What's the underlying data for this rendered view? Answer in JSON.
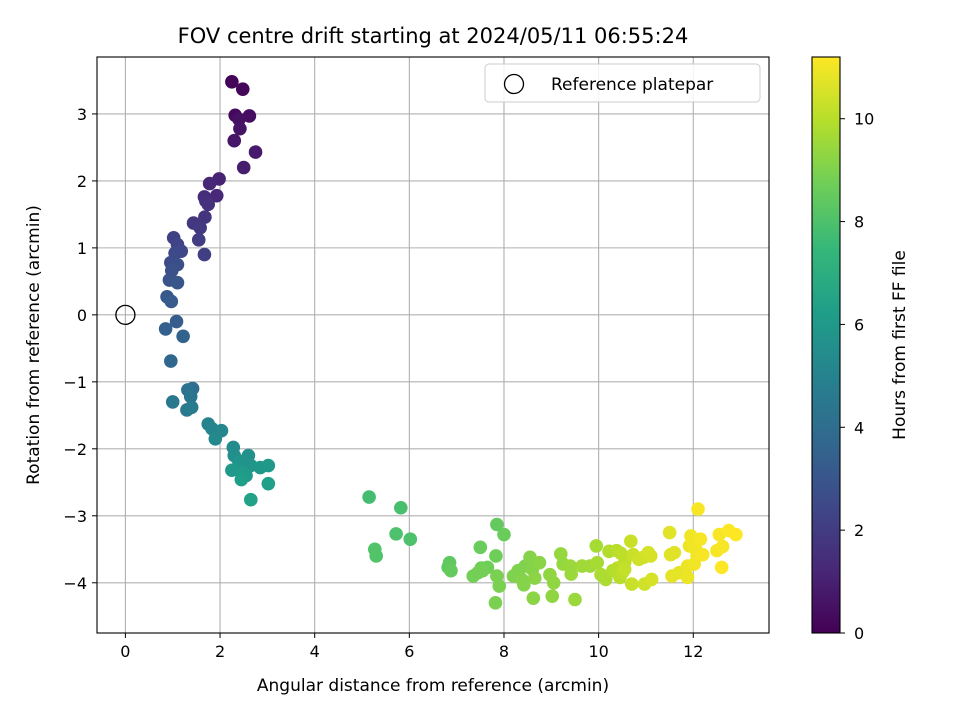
{
  "chart_data": {
    "type": "scatter",
    "title": "FOV centre drift starting at 2024/05/11 06:55:24",
    "xlabel": "Angular distance from reference (arcmin)",
    "ylabel": "Rotation from reference (arcmin)",
    "xlim": [
      -0.6,
      13.6
    ],
    "ylim": [
      -4.75,
      3.85
    ],
    "xticks": [
      0,
      2,
      4,
      6,
      8,
      10,
      12
    ],
    "yticks": [
      -4,
      -3,
      -2,
      -1,
      0,
      1,
      2,
      3
    ],
    "grid": true,
    "legend": {
      "label": "Reference platepar",
      "placement": "upper right"
    },
    "reference_point": {
      "x": 0,
      "y": 0
    },
    "colorbar": {
      "label": "Hours from first FF file",
      "colormap": "viridis",
      "range": [
        0,
        11.2
      ],
      "ticks": [
        0,
        2,
        4,
        6,
        8,
        10
      ]
    },
    "colormap_stops": [
      "#440154",
      "#482878",
      "#3e4989",
      "#31688e",
      "#26828e",
      "#1f9e89",
      "#35b779",
      "#6ece58",
      "#b5de2b",
      "#fde725"
    ],
    "points": [
      {
        "x": 2.25,
        "y": 3.48,
        "h": 0.1
      },
      {
        "x": 2.48,
        "y": 3.37,
        "h": 0.2
      },
      {
        "x": 2.32,
        "y": 2.98,
        "h": 0.3
      },
      {
        "x": 2.62,
        "y": 2.97,
        "h": 0.4
      },
      {
        "x": 2.4,
        "y": 2.92,
        "h": 0.5
      },
      {
        "x": 2.42,
        "y": 2.78,
        "h": 0.6
      },
      {
        "x": 2.3,
        "y": 2.6,
        "h": 0.7
      },
      {
        "x": 2.75,
        "y": 2.43,
        "h": 0.8
      },
      {
        "x": 2.5,
        "y": 2.2,
        "h": 0.9
      },
      {
        "x": 1.98,
        "y": 2.03,
        "h": 1.1
      },
      {
        "x": 1.78,
        "y": 1.96,
        "h": 1.2
      },
      {
        "x": 1.93,
        "y": 1.78,
        "h": 1.3
      },
      {
        "x": 1.67,
        "y": 1.76,
        "h": 1.4
      },
      {
        "x": 1.7,
        "y": 1.7,
        "h": 1.5
      },
      {
        "x": 1.75,
        "y": 1.65,
        "h": 1.6
      },
      {
        "x": 1.68,
        "y": 1.46,
        "h": 1.7
      },
      {
        "x": 1.44,
        "y": 1.37,
        "h": 1.8
      },
      {
        "x": 1.58,
        "y": 1.3,
        "h": 1.9
      },
      {
        "x": 1.55,
        "y": 1.12,
        "h": 2.0
      },
      {
        "x": 1.67,
        "y": 0.9,
        "h": 2.1
      },
      {
        "x": 1.02,
        "y": 1.15,
        "h": 2.2
      },
      {
        "x": 1.1,
        "y": 1.05,
        "h": 2.3
      },
      {
        "x": 1.18,
        "y": 0.95,
        "h": 2.4
      },
      {
        "x": 1.05,
        "y": 0.92,
        "h": 2.5
      },
      {
        "x": 0.96,
        "y": 0.78,
        "h": 2.6
      },
      {
        "x": 1.1,
        "y": 0.75,
        "h": 2.7
      },
      {
        "x": 0.98,
        "y": 0.66,
        "h": 2.8
      },
      {
        "x": 0.93,
        "y": 0.52,
        "h": 2.9
      },
      {
        "x": 1.1,
        "y": 0.48,
        "h": 3.0
      },
      {
        "x": 0.88,
        "y": 0.27,
        "h": 3.1
      },
      {
        "x": 0.97,
        "y": 0.2,
        "h": 3.2
      },
      {
        "x": 1.08,
        "y": -0.1,
        "h": 3.3
      },
      {
        "x": 0.85,
        "y": -0.21,
        "h": 3.4
      },
      {
        "x": 1.22,
        "y": -0.32,
        "h": 3.5
      },
      {
        "x": 0.96,
        "y": -0.69,
        "h": 3.7
      },
      {
        "x": 1.42,
        "y": -1.1,
        "h": 4.0
      },
      {
        "x": 1.32,
        "y": -1.12,
        "h": 4.2
      },
      {
        "x": 1.38,
        "y": -1.22,
        "h": 4.4
      },
      {
        "x": 1.0,
        "y": -1.3,
        "h": 4.5
      },
      {
        "x": 1.3,
        "y": -1.42,
        "h": 4.6
      },
      {
        "x": 1.4,
        "y": -1.38,
        "h": 4.7
      },
      {
        "x": 1.75,
        "y": -1.63,
        "h": 5.0
      },
      {
        "x": 1.83,
        "y": -1.7,
        "h": 5.1
      },
      {
        "x": 2.03,
        "y": -1.73,
        "h": 5.2
      },
      {
        "x": 1.9,
        "y": -1.85,
        "h": 5.3
      },
      {
        "x": 2.28,
        "y": -1.98,
        "h": 5.4
      },
      {
        "x": 2.3,
        "y": -2.1,
        "h": 5.5
      },
      {
        "x": 2.6,
        "y": -2.1,
        "h": 5.6
      },
      {
        "x": 2.5,
        "y": -2.18,
        "h": 5.7
      },
      {
        "x": 2.4,
        "y": -2.2,
        "h": 5.8
      },
      {
        "x": 2.65,
        "y": -2.25,
        "h": 5.8
      },
      {
        "x": 2.85,
        "y": -2.28,
        "h": 5.9
      },
      {
        "x": 3.02,
        "y": -2.25,
        "h": 6.0
      },
      {
        "x": 2.25,
        "y": -2.32,
        "h": 6.0
      },
      {
        "x": 2.45,
        "y": -2.35,
        "h": 6.1
      },
      {
        "x": 2.55,
        "y": -2.4,
        "h": 6.1
      },
      {
        "x": 2.45,
        "y": -2.46,
        "h": 6.2
      },
      {
        "x": 3.02,
        "y": -2.52,
        "h": 6.3
      },
      {
        "x": 2.65,
        "y": -2.76,
        "h": 6.4
      },
      {
        "x": 5.15,
        "y": -2.72,
        "h": 7.8
      },
      {
        "x": 5.82,
        "y": -2.88,
        "h": 7.9
      },
      {
        "x": 5.72,
        "y": -3.27,
        "h": 8.0
      },
      {
        "x": 6.02,
        "y": -3.35,
        "h": 8.0
      },
      {
        "x": 5.27,
        "y": -3.5,
        "h": 8.1
      },
      {
        "x": 5.3,
        "y": -3.6,
        "h": 8.1
      },
      {
        "x": 6.85,
        "y": -3.7,
        "h": 8.4
      },
      {
        "x": 6.82,
        "y": -3.77,
        "h": 8.4
      },
      {
        "x": 6.88,
        "y": -3.82,
        "h": 8.5
      },
      {
        "x": 7.5,
        "y": -3.47,
        "h": 8.6
      },
      {
        "x": 7.85,
        "y": -3.13,
        "h": 8.5
      },
      {
        "x": 8.0,
        "y": -3.28,
        "h": 8.6
      },
      {
        "x": 7.83,
        "y": -3.6,
        "h": 8.7
      },
      {
        "x": 7.52,
        "y": -3.78,
        "h": 8.7
      },
      {
        "x": 7.65,
        "y": -3.77,
        "h": 8.7
      },
      {
        "x": 7.45,
        "y": -3.85,
        "h": 8.8
      },
      {
        "x": 7.55,
        "y": -3.82,
        "h": 8.8
      },
      {
        "x": 7.35,
        "y": -3.9,
        "h": 8.8
      },
      {
        "x": 7.85,
        "y": -3.9,
        "h": 8.9
      },
      {
        "x": 7.9,
        "y": -4.05,
        "h": 8.9
      },
      {
        "x": 7.82,
        "y": -4.3,
        "h": 8.9
      },
      {
        "x": 8.3,
        "y": -3.82,
        "h": 9.0
      },
      {
        "x": 8.45,
        "y": -3.75,
        "h": 9.0
      },
      {
        "x": 8.2,
        "y": -3.9,
        "h": 9.0
      },
      {
        "x": 8.38,
        "y": -3.95,
        "h": 9.1
      },
      {
        "x": 8.42,
        "y": -4.03,
        "h": 9.1
      },
      {
        "x": 8.55,
        "y": -3.62,
        "h": 9.1
      },
      {
        "x": 8.6,
        "y": -3.8,
        "h": 9.1
      },
      {
        "x": 8.75,
        "y": -3.7,
        "h": 9.2
      },
      {
        "x": 8.65,
        "y": -3.93,
        "h": 9.2
      },
      {
        "x": 8.62,
        "y": -4.23,
        "h": 9.2
      },
      {
        "x": 8.97,
        "y": -3.88,
        "h": 9.3
      },
      {
        "x": 9.05,
        "y": -4.0,
        "h": 9.3
      },
      {
        "x": 9.02,
        "y": -4.2,
        "h": 9.3
      },
      {
        "x": 9.2,
        "y": -3.57,
        "h": 9.4
      },
      {
        "x": 9.25,
        "y": -3.72,
        "h": 9.4
      },
      {
        "x": 9.4,
        "y": -3.75,
        "h": 9.5
      },
      {
        "x": 9.42,
        "y": -3.87,
        "h": 9.5
      },
      {
        "x": 9.5,
        "y": -4.25,
        "h": 9.5
      },
      {
        "x": 9.65,
        "y": -3.75,
        "h": 9.6
      },
      {
        "x": 9.82,
        "y": -3.75,
        "h": 9.6
      },
      {
        "x": 9.95,
        "y": -3.45,
        "h": 9.7
      },
      {
        "x": 9.97,
        "y": -3.7,
        "h": 9.7
      },
      {
        "x": 10.05,
        "y": -3.88,
        "h": 9.8
      },
      {
        "x": 10.15,
        "y": -3.95,
        "h": 9.8
      },
      {
        "x": 10.22,
        "y": -3.53,
        "h": 9.9
      },
      {
        "x": 10.3,
        "y": -3.82,
        "h": 9.9
      },
      {
        "x": 10.38,
        "y": -3.52,
        "h": 10.0
      },
      {
        "x": 10.4,
        "y": -3.78,
        "h": 10.0
      },
      {
        "x": 10.45,
        "y": -3.92,
        "h": 10.0
      },
      {
        "x": 10.47,
        "y": -3.56,
        "h": 10.1
      },
      {
        "x": 10.55,
        "y": -3.7,
        "h": 10.1
      },
      {
        "x": 10.5,
        "y": -3.85,
        "h": 10.1
      },
      {
        "x": 10.55,
        "y": -3.8,
        "h": 10.2
      },
      {
        "x": 10.68,
        "y": -3.38,
        "h": 10.3
      },
      {
        "x": 10.73,
        "y": -3.58,
        "h": 10.3
      },
      {
        "x": 10.7,
        "y": -4.02,
        "h": 10.3
      },
      {
        "x": 10.85,
        "y": -3.65,
        "h": 10.4
      },
      {
        "x": 10.95,
        "y": -3.62,
        "h": 10.4
      },
      {
        "x": 10.97,
        "y": -4.02,
        "h": 10.4
      },
      {
        "x": 11.05,
        "y": -3.55,
        "h": 10.5
      },
      {
        "x": 11.1,
        "y": -3.6,
        "h": 10.5
      },
      {
        "x": 11.12,
        "y": -3.95,
        "h": 10.5
      },
      {
        "x": 11.5,
        "y": -3.25,
        "h": 10.7
      },
      {
        "x": 11.52,
        "y": -3.58,
        "h": 10.7
      },
      {
        "x": 11.6,
        "y": -3.55,
        "h": 10.7
      },
      {
        "x": 11.55,
        "y": -3.9,
        "h": 10.8
      },
      {
        "x": 11.7,
        "y": -3.85,
        "h": 10.8
      },
      {
        "x": 11.82,
        "y": -3.83,
        "h": 10.8
      },
      {
        "x": 11.88,
        "y": -3.92,
        "h": 10.9
      },
      {
        "x": 11.88,
        "y": -3.75,
        "h": 10.9
      },
      {
        "x": 11.92,
        "y": -3.45,
        "h": 10.9
      },
      {
        "x": 11.95,
        "y": -3.3,
        "h": 11.0
      },
      {
        "x": 12.0,
        "y": -3.4,
        "h": 11.0
      },
      {
        "x": 12.05,
        "y": -3.5,
        "h": 11.0
      },
      {
        "x": 12.08,
        "y": -3.6,
        "h": 11.0
      },
      {
        "x": 12.02,
        "y": -3.72,
        "h": 11.0
      },
      {
        "x": 12.1,
        "y": -2.9,
        "h": 11.1
      },
      {
        "x": 12.15,
        "y": -3.35,
        "h": 11.1
      },
      {
        "x": 12.2,
        "y": -3.58,
        "h": 11.1
      },
      {
        "x": 12.5,
        "y": -3.52,
        "h": 11.1
      },
      {
        "x": 12.55,
        "y": -3.28,
        "h": 11.1
      },
      {
        "x": 12.62,
        "y": -3.46,
        "h": 11.1
      },
      {
        "x": 12.6,
        "y": -3.77,
        "h": 11.2
      },
      {
        "x": 12.75,
        "y": -3.22,
        "h": 11.2
      },
      {
        "x": 12.9,
        "y": -3.28,
        "h": 11.2
      }
    ]
  }
}
